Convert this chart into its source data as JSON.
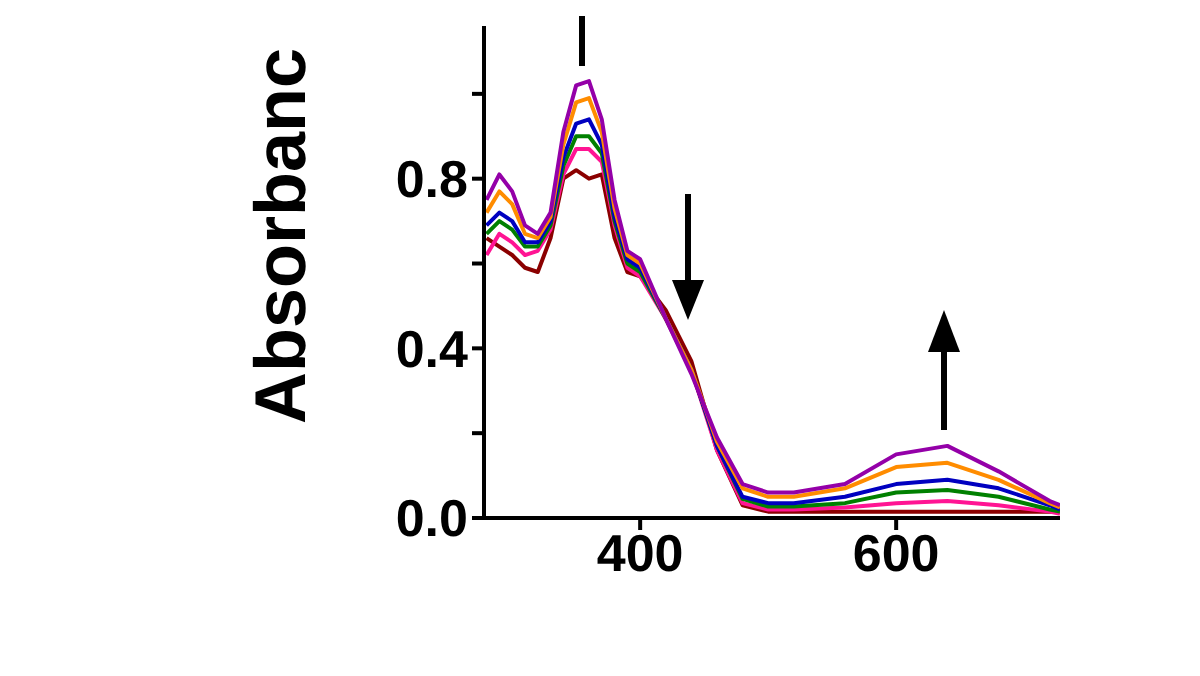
{
  "chart_data": {
    "type": "line",
    "ylabel": "Absorbanc",
    "x": [
      280,
      290,
      300,
      310,
      320,
      330,
      340,
      350,
      360,
      370,
      380,
      390,
      400,
      420,
      440,
      460,
      480,
      500,
      520,
      560,
      600,
      640,
      680,
      720,
      728
    ],
    "series": [
      {
        "color": "#8b0000",
        "values": [
          0.66,
          0.64,
          0.62,
          0.59,
          0.58,
          0.66,
          0.8,
          0.82,
          0.8,
          0.81,
          0.66,
          0.58,
          0.57,
          0.49,
          0.37,
          0.16,
          0.03,
          0.015,
          0.015,
          0.015,
          0.015,
          0.015,
          0.015,
          0.015,
          0.015
        ]
      },
      {
        "color": "#ff1493",
        "values": [
          0.62,
          0.67,
          0.65,
          0.62,
          0.63,
          0.68,
          0.81,
          0.87,
          0.87,
          0.84,
          0.69,
          0.59,
          0.57,
          0.47,
          0.35,
          0.16,
          0.035,
          0.02,
          0.02,
          0.025,
          0.035,
          0.04,
          0.03,
          0.015,
          0.01
        ]
      },
      {
        "color": "#008000",
        "values": [
          0.67,
          0.7,
          0.68,
          0.64,
          0.64,
          0.69,
          0.83,
          0.9,
          0.9,
          0.86,
          0.7,
          0.6,
          0.58,
          0.47,
          0.35,
          0.17,
          0.045,
          0.027,
          0.027,
          0.035,
          0.06,
          0.066,
          0.05,
          0.02,
          0.015
        ]
      },
      {
        "color": "#0000c0",
        "values": [
          0.69,
          0.72,
          0.7,
          0.65,
          0.65,
          0.7,
          0.85,
          0.93,
          0.94,
          0.88,
          0.71,
          0.61,
          0.59,
          0.47,
          0.35,
          0.17,
          0.05,
          0.035,
          0.035,
          0.05,
          0.08,
          0.09,
          0.07,
          0.03,
          0.02
        ]
      },
      {
        "color": "#ff8c00",
        "values": [
          0.72,
          0.77,
          0.74,
          0.67,
          0.66,
          0.71,
          0.88,
          0.98,
          0.99,
          0.91,
          0.73,
          0.62,
          0.6,
          0.47,
          0.35,
          0.18,
          0.07,
          0.05,
          0.05,
          0.07,
          0.12,
          0.13,
          0.09,
          0.035,
          0.025
        ]
      },
      {
        "color": "#9400a8",
        "values": [
          0.75,
          0.81,
          0.77,
          0.69,
          0.67,
          0.72,
          0.91,
          1.02,
          1.03,
          0.94,
          0.75,
          0.63,
          0.61,
          0.47,
          0.34,
          0.19,
          0.08,
          0.06,
          0.06,
          0.08,
          0.15,
          0.17,
          0.11,
          0.04,
          0.03
        ]
      }
    ],
    "xlim": [
      278,
      728
    ],
    "xticks": [
      400,
      600
    ],
    "ylim": [
      0,
      1.16
    ],
    "yticks": [
      {
        "value": 0,
        "label": "0.0"
      },
      {
        "value": 0.2,
        "label": null
      },
      {
        "value": 0.4,
        "label": "0.4"
      },
      {
        "value": 0.6,
        "label": null
      },
      {
        "value": 0.8,
        "label": "0.8"
      },
      {
        "value": 1.0,
        "label": null
      }
    ],
    "marker": "none",
    "line_style": "solid",
    "grid": false,
    "legend": false
  }
}
